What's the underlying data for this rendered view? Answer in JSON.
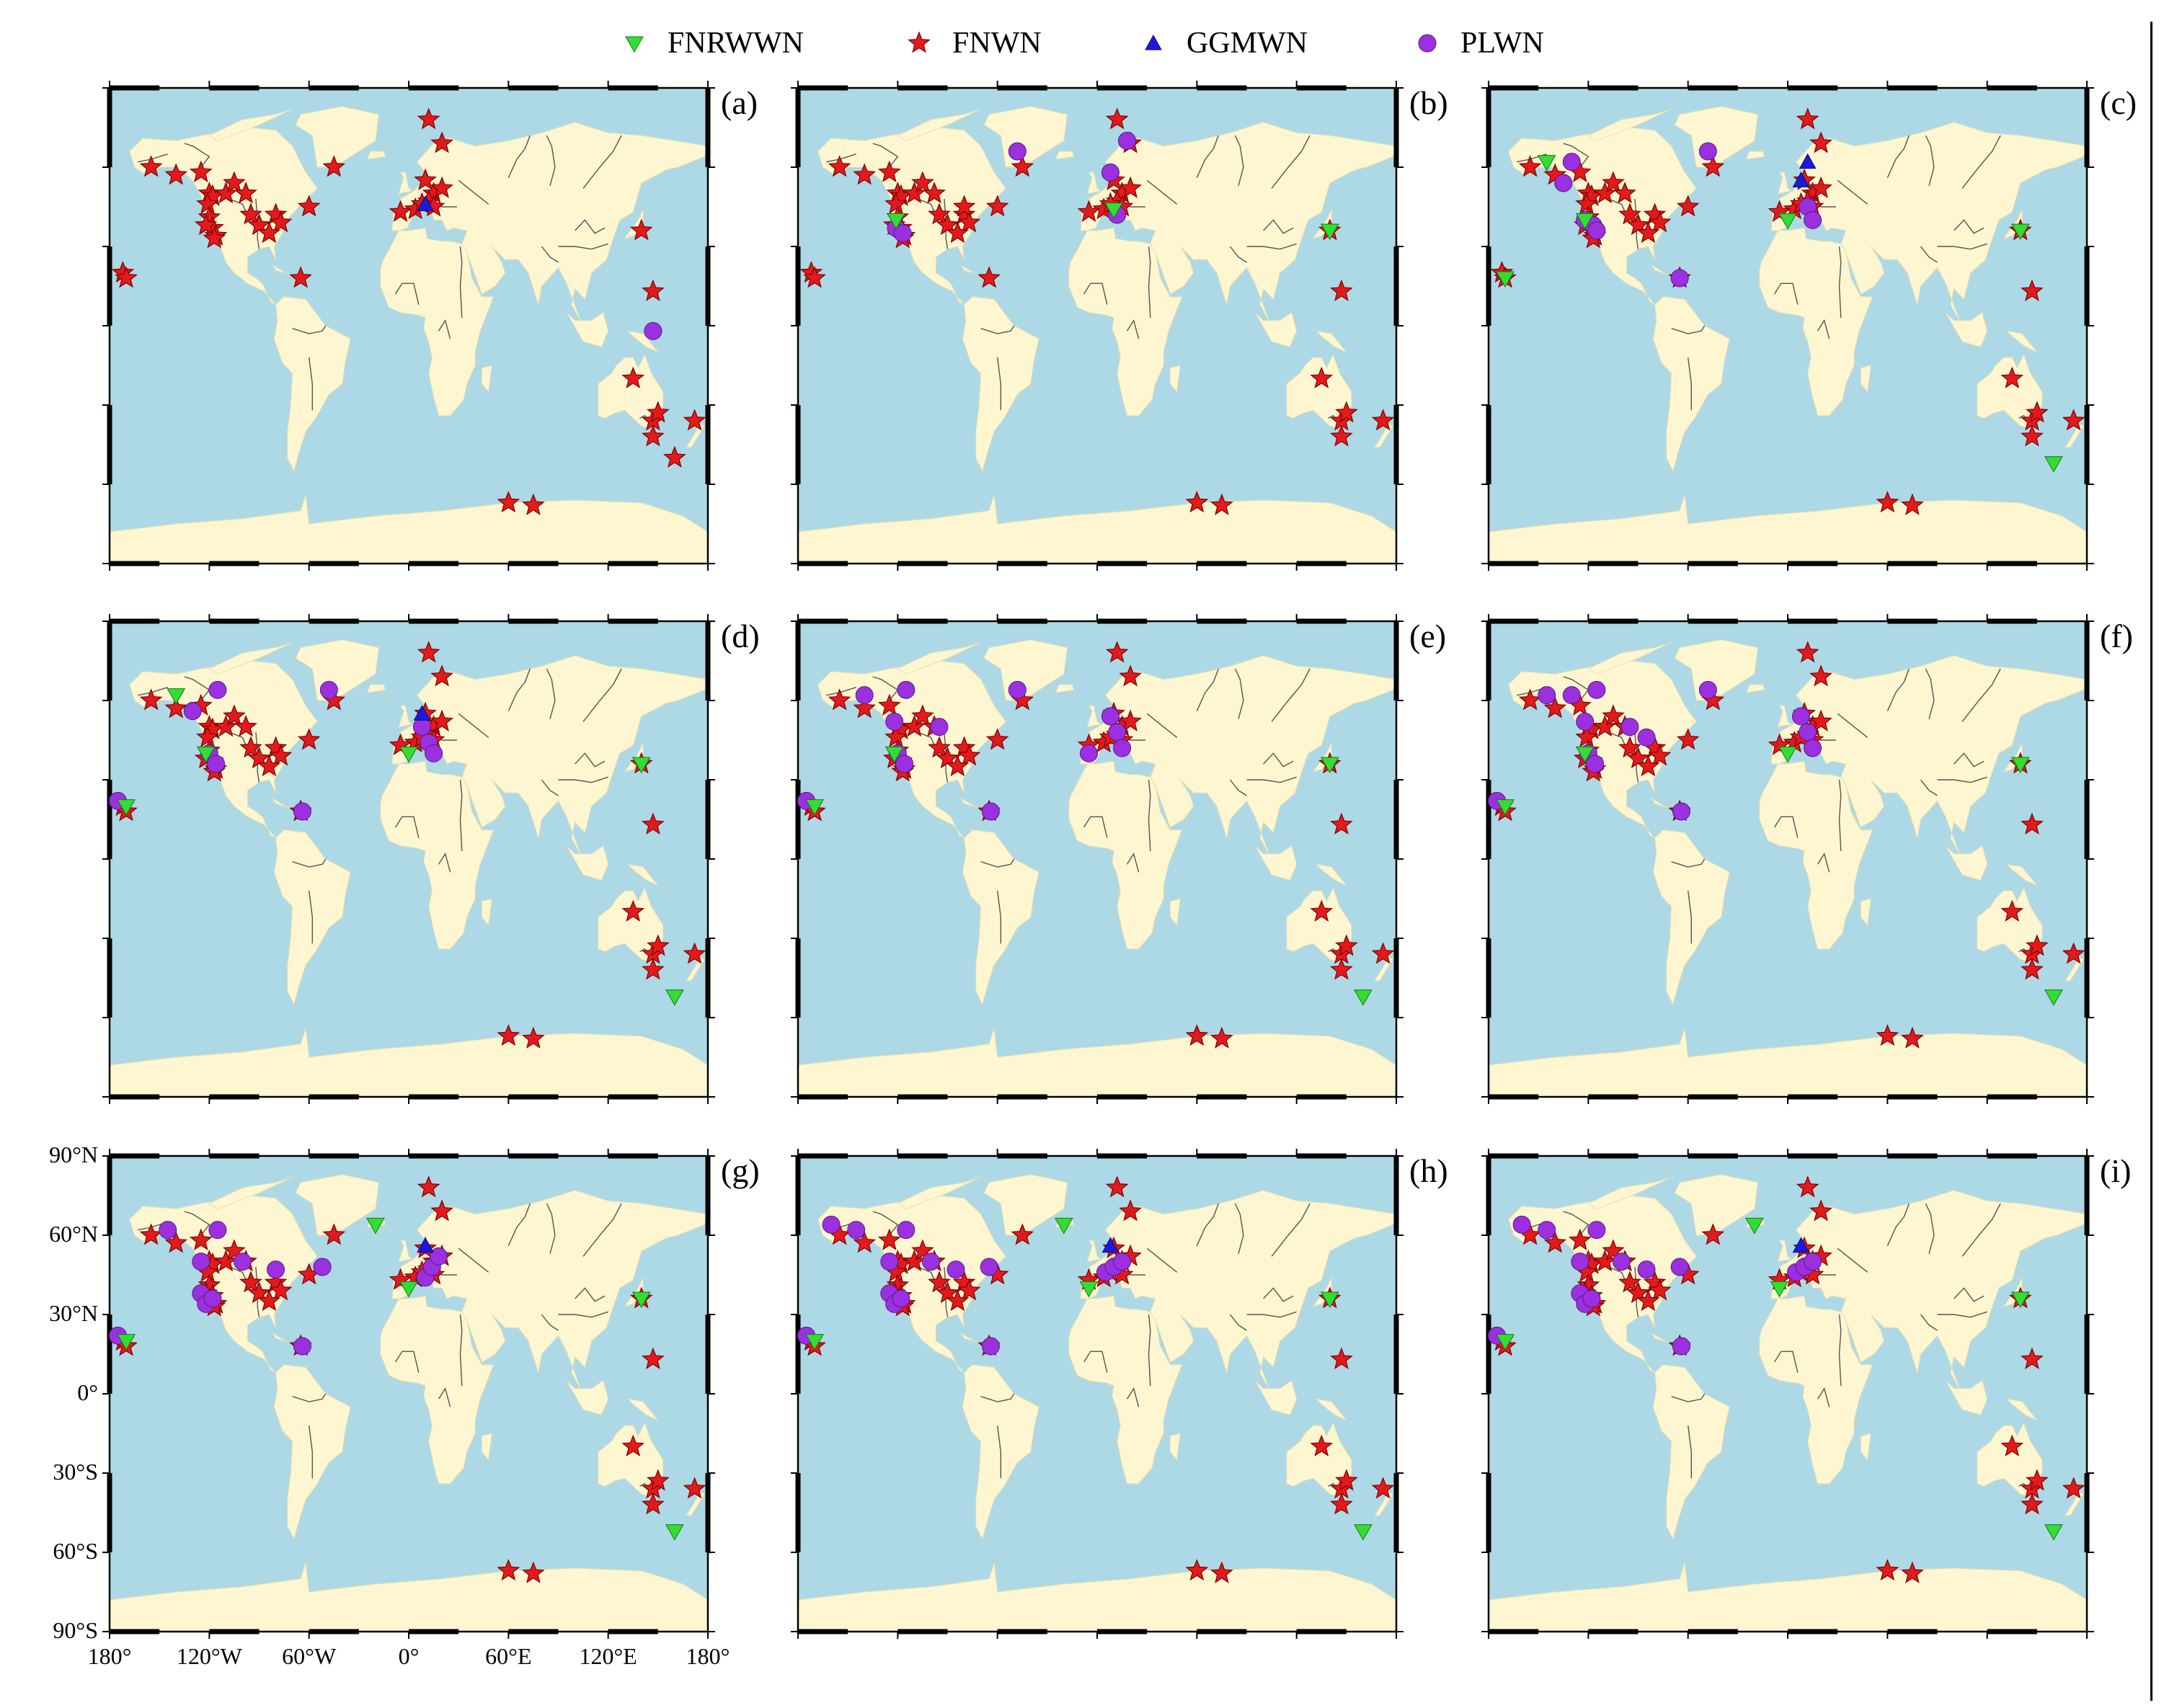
{
  "legend": [
    {
      "key": "FNRWWN",
      "label": "FNRWWN",
      "marker": "triangle-down-icon",
      "color": "#33dd33"
    },
    {
      "key": "FNWN",
      "label": "FNWN",
      "marker": "star-icon",
      "color": "#e31a1c"
    },
    {
      "key": "GGMWN",
      "label": "GGMWN",
      "marker": "triangle-up-icon",
      "color": "#1a1adc"
    },
    {
      "key": "PLWN",
      "label": "PLWN",
      "marker": "circle-icon",
      "color": "#9b30e0"
    }
  ],
  "colors": {
    "ocean": "#add8e6",
    "land": "#fdf6d0",
    "river": "#555555",
    "frame": "#000000"
  },
  "axes": {
    "lat_ticks": [
      "90°N",
      "60°N",
      "30°N",
      "0°",
      "30°S",
      "60°S",
      "90°S"
    ],
    "lon_ticks": [
      "180°",
      "120°W",
      "60°W",
      "0°",
      "60°E",
      "120°E",
      "180°"
    ]
  },
  "fnwn_stations": [
    [
      -155,
      60
    ],
    [
      -140,
      57
    ],
    [
      -125,
      58
    ],
    [
      -120,
      50
    ],
    [
      -118,
      49
    ],
    [
      -121,
      46
    ],
    [
      -120,
      41
    ],
    [
      -118,
      37
    ],
    [
      -122,
      38
    ],
    [
      -116,
      34
    ],
    [
      -117,
      33
    ],
    [
      -110,
      50
    ],
    [
      -105,
      54
    ],
    [
      -98,
      50
    ],
    [
      -95,
      42
    ],
    [
      -90,
      38
    ],
    [
      -80,
      42
    ],
    [
      -77,
      39
    ],
    [
      -84,
      35
    ],
    [
      -60,
      45
    ],
    [
      -45,
      60
    ],
    [
      12,
      78
    ],
    [
      20,
      69
    ],
    [
      10,
      55
    ],
    [
      15,
      50
    ],
    [
      12,
      47
    ],
    [
      4,
      44
    ],
    [
      -5,
      43
    ],
    [
      8,
      46
    ],
    [
      20,
      52
    ],
    [
      15,
      45
    ],
    [
      140,
      36
    ],
    [
      147,
      13
    ],
    [
      -65,
      18
    ],
    [
      135,
      -20
    ],
    [
      -172,
      20
    ],
    [
      -170,
      18
    ],
    [
      147,
      -36
    ],
    [
      150,
      -33
    ],
    [
      147,
      -42
    ],
    [
      172,
      -36
    ],
    [
      160,
      -50
    ],
    [
      60,
      -67
    ],
    [
      75,
      -68
    ]
  ],
  "panels": [
    {
      "id": "a",
      "label": "(a)",
      "fnrwwn": [],
      "ggmwn": [
        [
          10,
          46
        ]
      ],
      "plwn": [
        [
          147,
          -2
        ]
      ],
      "fnwn_hidden": [],
      "extra_fnwn": []
    },
    {
      "id": "b",
      "label": "(b)",
      "fnrwwn": [
        [
          -121,
          40
        ],
        [
          140,
          36
        ],
        [
          10,
          44
        ]
      ],
      "ggmwn": [],
      "plwn": [
        [
          -48,
          66
        ],
        [
          18,
          70
        ],
        [
          8,
          58
        ],
        [
          -121,
          37
        ],
        [
          -117,
          35
        ],
        [
          12,
          42
        ]
      ],
      "fnwn_hidden": [
        [
          160,
          -50
        ]
      ],
      "extra_fnwn": [
        [
          -80,
          45
        ]
      ]
    },
    {
      "id": "c",
      "label": "(c)",
      "fnrwwn": [
        [
          -145,
          62
        ],
        [
          -122,
          40
        ],
        [
          -170,
          18
        ],
        [
          0,
          40
        ],
        [
          140,
          36
        ],
        [
          160,
          -52
        ]
      ],
      "ggmwn": [
        [
          12,
          62
        ],
        [
          8,
          55
        ]
      ],
      "plwn": [
        [
          -130,
          62
        ],
        [
          -135,
          54
        ],
        [
          -122,
          40
        ],
        [
          -117,
          38
        ],
        [
          -115,
          36
        ],
        [
          -48,
          66
        ],
        [
          -65,
          18
        ],
        [
          12,
          45
        ],
        [
          15,
          40
        ]
      ],
      "fnwn_hidden": [
        [
          160,
          -50
        ]
      ],
      "extra_fnwn": []
    },
    {
      "id": "d",
      "label": "(d)",
      "fnrwwn": [
        [
          -140,
          62
        ],
        [
          -122,
          40
        ],
        [
          -170,
          20
        ],
        [
          0,
          40
        ],
        [
          140,
          36
        ],
        [
          160,
          -52
        ]
      ],
      "ggmwn": [
        [
          8,
          55
        ]
      ],
      "plwn": [
        [
          -115,
          64
        ],
        [
          -130,
          56
        ],
        [
          -120,
          40
        ],
        [
          -116,
          36
        ],
        [
          -48,
          64
        ],
        [
          -64,
          18
        ],
        [
          8,
          50
        ],
        [
          12,
          44
        ],
        [
          15,
          40
        ],
        [
          -175,
          22
        ]
      ],
      "fnwn_hidden": [
        [
          160,
          -50
        ]
      ],
      "extra_fnwn": []
    },
    {
      "id": "e",
      "label": "(e)",
      "fnrwwn": [
        [
          -122,
          40
        ],
        [
          -170,
          20
        ],
        [
          140,
          36
        ],
        [
          160,
          -52
        ]
      ],
      "ggmwn": [],
      "plwn": [
        [
          -140,
          62
        ],
        [
          -115,
          64
        ],
        [
          -122,
          52
        ],
        [
          -120,
          40
        ],
        [
          -116,
          36
        ],
        [
          -95,
          50
        ],
        [
          -48,
          64
        ],
        [
          -64,
          18
        ],
        [
          8,
          54
        ],
        [
          12,
          48
        ],
        [
          15,
          42
        ],
        [
          -5,
          40
        ],
        [
          -175,
          22
        ]
      ],
      "fnwn_hidden": [
        [
          160,
          -50
        ]
      ],
      "extra_fnwn": []
    },
    {
      "id": "f",
      "label": "(f)",
      "fnrwwn": [
        [
          -122,
          40
        ],
        [
          -170,
          20
        ],
        [
          0,
          40
        ],
        [
          140,
          36
        ],
        [
          160,
          -52
        ]
      ],
      "ggmwn": [],
      "plwn": [
        [
          -145,
          62
        ],
        [
          -130,
          62
        ],
        [
          -115,
          64
        ],
        [
          -122,
          52
        ],
        [
          -120,
          40
        ],
        [
          -116,
          36
        ],
        [
          -95,
          50
        ],
        [
          -85,
          46
        ],
        [
          -48,
          64
        ],
        [
          -64,
          18
        ],
        [
          8,
          54
        ],
        [
          12,
          48
        ],
        [
          15,
          42
        ],
        [
          -175,
          22
        ]
      ],
      "fnwn_hidden": [
        [
          160,
          -50
        ]
      ],
      "extra_fnwn": []
    },
    {
      "id": "g",
      "label": "(g)",
      "fnrwwn": [
        [
          -170,
          20
        ],
        [
          -20,
          64
        ],
        [
          0,
          40
        ],
        [
          140,
          36
        ],
        [
          160,
          -52
        ]
      ],
      "ggmwn": [
        [
          10,
          56
        ]
      ],
      "plwn": [
        [
          -145,
          62
        ],
        [
          -115,
          62
        ],
        [
          -125,
          50
        ],
        [
          -100,
          50
        ],
        [
          -80,
          47
        ],
        [
          -52,
          48
        ],
        [
          -125,
          38
        ],
        [
          -122,
          34
        ],
        [
          -118,
          36
        ],
        [
          -64,
          18
        ],
        [
          10,
          44
        ],
        [
          14,
          48
        ],
        [
          18,
          52
        ],
        [
          -175,
          22
        ]
      ],
      "fnwn_hidden": [
        [
          160,
          -50
        ]
      ],
      "extra_fnwn": []
    },
    {
      "id": "h",
      "label": "(h)",
      "fnrwwn": [
        [
          -170,
          20
        ],
        [
          -20,
          64
        ],
        [
          -5,
          40
        ],
        [
          140,
          36
        ],
        [
          160,
          -52
        ]
      ],
      "ggmwn": [
        [
          8,
          56
        ]
      ],
      "plwn": [
        [
          -160,
          64
        ],
        [
          -145,
          62
        ],
        [
          -115,
          62
        ],
        [
          -125,
          50
        ],
        [
          -100,
          50
        ],
        [
          -85,
          47
        ],
        [
          -65,
          48
        ],
        [
          -125,
          38
        ],
        [
          -122,
          34
        ],
        [
          -118,
          36
        ],
        [
          -64,
          18
        ],
        [
          5,
          46
        ],
        [
          10,
          48
        ],
        [
          15,
          50
        ],
        [
          -175,
          22
        ]
      ],
      "fnwn_hidden": [
        [
          160,
          -50
        ]
      ],
      "extra_fnwn": []
    },
    {
      "id": "i",
      "label": "(i)",
      "fnrwwn": [
        [
          -170,
          20
        ],
        [
          -20,
          64
        ],
        [
          -5,
          40
        ],
        [
          140,
          36
        ],
        [
          160,
          -52
        ]
      ],
      "ggmwn": [
        [
          8,
          56
        ]
      ],
      "plwn": [
        [
          -160,
          64
        ],
        [
          -145,
          62
        ],
        [
          -115,
          62
        ],
        [
          -125,
          50
        ],
        [
          -100,
          50
        ],
        [
          -85,
          47
        ],
        [
          -65,
          48
        ],
        [
          -125,
          38
        ],
        [
          -122,
          34
        ],
        [
          -118,
          36
        ],
        [
          -64,
          18
        ],
        [
          5,
          46
        ],
        [
          10,
          48
        ],
        [
          15,
          50
        ],
        [
          -175,
          22
        ]
      ],
      "fnwn_hidden": [
        [
          160,
          -50
        ]
      ],
      "extra_fnwn": []
    }
  ]
}
